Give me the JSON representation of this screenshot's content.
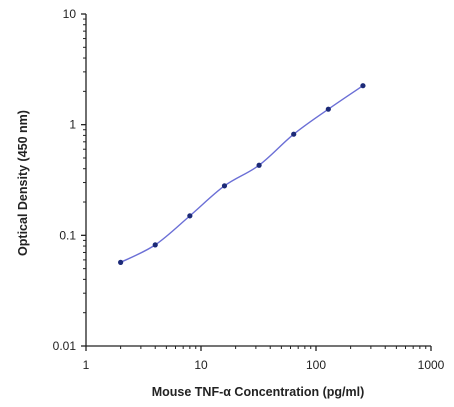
{
  "chart_data": {
    "type": "line",
    "title": "",
    "xlabel": "Mouse TNF-α Concentration (pg/ml)",
    "ylabel": "Optical Density (450 nm)",
    "x_scale": "log",
    "y_scale": "log",
    "xlim": [
      1,
      1000
    ],
    "ylim": [
      0.01,
      10
    ],
    "x_ticks": [
      "1",
      "10",
      "100",
      "1000"
    ],
    "y_ticks": [
      "0.01",
      "0.1",
      "1",
      "10"
    ],
    "grid": false,
    "legend": "none",
    "series": [
      {
        "x": [
          2,
          4,
          8,
          16,
          32,
          64,
          128,
          256
        ],
        "y": [
          0.057,
          0.082,
          0.15,
          0.28,
          0.43,
          0.82,
          1.38,
          2.25
        ]
      }
    ],
    "colors": {
      "line": "#6b6fd6",
      "marker": "#1c2a78",
      "axis": "#222222"
    }
  }
}
